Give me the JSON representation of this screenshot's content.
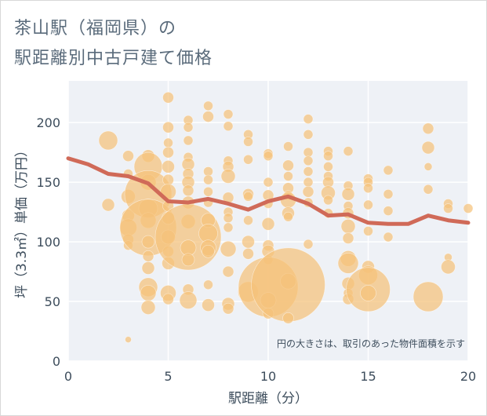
{
  "header": {
    "title_line1": "茶山駅（福岡県）の",
    "title_line2": "駅距離別中古戸建て価格"
  },
  "chart_data": {
    "type": "scatter",
    "xlabel": "駅距離（分）",
    "ylabel": "坪（3.3㎡）単価（万円）",
    "xlim": [
      0,
      20
    ],
    "ylim": [
      0,
      235
    ],
    "xticks": [
      0,
      5,
      10,
      15,
      20
    ],
    "yticks": [
      0,
      50,
      100,
      150,
      200
    ],
    "note": "円の大きさは、取引のあった物件面積を示す",
    "colors": {
      "bubble": "#f5c27a",
      "trend": "#d06a58",
      "plot_bg": "#eef1f6",
      "grid": "#ffffff"
    },
    "bubbles": [
      [
        2,
        185,
        12
      ],
      [
        2,
        131,
        8
      ],
      [
        3,
        172,
        7
      ],
      [
        3,
        157,
        6
      ],
      [
        3,
        138,
        9
      ],
      [
        3,
        122,
        8
      ],
      [
        3,
        112,
        11
      ],
      [
        3,
        102,
        7
      ],
      [
        3,
        97,
        6
      ],
      [
        3,
        18,
        4
      ],
      [
        4,
        172,
        8
      ],
      [
        4,
        163,
        18
      ],
      [
        4,
        150,
        10
      ],
      [
        4,
        140,
        30
      ],
      [
        4,
        128,
        12
      ],
      [
        4,
        118,
        10
      ],
      [
        4,
        112,
        36
      ],
      [
        4,
        100,
        8
      ],
      [
        4,
        88,
        7
      ],
      [
        4,
        78,
        8
      ],
      [
        4,
        62,
        12
      ],
      [
        4,
        57,
        10
      ],
      [
        4,
        45,
        9
      ],
      [
        5,
        221,
        7
      ],
      [
        5,
        196,
        7
      ],
      [
        5,
        183,
        6
      ],
      [
        5,
        175,
        7
      ],
      [
        5,
        163,
        8
      ],
      [
        5,
        152,
        7
      ],
      [
        5,
        142,
        10
      ],
      [
        5,
        130,
        7
      ],
      [
        5,
        120,
        8
      ],
      [
        5,
        104,
        9
      ],
      [
        5,
        92,
        7
      ],
      [
        5,
        82,
        8
      ],
      [
        5,
        57,
        10
      ],
      [
        5,
        52,
        7
      ],
      [
        6,
        202,
        6
      ],
      [
        6,
        196,
        6
      ],
      [
        6,
        185,
        6
      ],
      [
        6,
        171,
        6
      ],
      [
        6,
        165,
        8
      ],
      [
        6,
        157,
        7
      ],
      [
        6,
        150,
        8
      ],
      [
        6,
        143,
        7
      ],
      [
        6,
        133,
        8
      ],
      [
        6,
        117,
        9
      ],
      [
        6,
        104,
        42
      ],
      [
        6,
        95,
        10
      ],
      [
        6,
        85,
        8
      ],
      [
        6,
        60,
        7
      ],
      [
        6,
        51,
        11
      ],
      [
        7,
        214,
        6
      ],
      [
        7,
        205,
        7
      ],
      [
        7,
        159,
        6
      ],
      [
        7,
        152,
        6
      ],
      [
        7,
        142,
        6
      ],
      [
        7,
        133,
        6
      ],
      [
        7,
        118,
        9
      ],
      [
        7,
        107,
        12
      ],
      [
        7,
        95,
        10
      ],
      [
        7,
        92,
        8
      ],
      [
        7,
        64,
        6
      ],
      [
        7,
        47,
        8
      ],
      [
        8,
        207,
        6
      ],
      [
        8,
        197,
        6
      ],
      [
        8,
        168,
        6
      ],
      [
        8,
        163,
        7
      ],
      [
        8,
        155,
        9
      ],
      [
        8,
        137,
        7
      ],
      [
        8,
        125,
        6
      ],
      [
        8,
        120,
        6
      ],
      [
        8,
        112,
        6
      ],
      [
        8,
        94,
        10
      ],
      [
        8,
        75,
        7
      ],
      [
        8,
        48,
        8
      ],
      [
        8,
        44,
        7
      ],
      [
        9,
        190,
        6
      ],
      [
        9,
        184,
        6
      ],
      [
        9,
        169,
        6
      ],
      [
        9,
        140,
        7
      ],
      [
        9,
        138,
        6
      ],
      [
        9,
        118,
        6
      ],
      [
        9,
        100,
        8
      ],
      [
        9,
        90,
        7
      ],
      [
        9,
        58,
        13
      ],
      [
        10,
        174,
        6
      ],
      [
        10,
        172,
        6
      ],
      [
        10,
        150,
        6
      ],
      [
        10,
        139,
        7
      ],
      [
        10,
        132,
        6
      ],
      [
        10,
        115,
        8
      ],
      [
        10,
        97,
        7
      ],
      [
        10,
        92,
        8
      ],
      [
        10,
        85,
        6
      ],
      [
        10,
        62,
        38
      ],
      [
        10,
        51,
        10
      ],
      [
        10,
        40,
        7
      ],
      [
        11,
        180,
        6
      ],
      [
        11,
        164,
        7
      ],
      [
        11,
        155,
        6
      ],
      [
        11,
        145,
        7
      ],
      [
        11,
        139,
        6
      ],
      [
        11,
        135,
        10
      ],
      [
        11,
        124,
        8
      ],
      [
        11,
        121,
        6
      ],
      [
        11,
        67,
        10
      ],
      [
        11,
        64,
        47
      ],
      [
        11,
        36,
        7
      ],
      [
        12,
        203,
        6
      ],
      [
        12,
        190,
        6
      ],
      [
        12,
        175,
        6
      ],
      [
        12,
        168,
        6
      ],
      [
        12,
        159,
        6
      ],
      [
        12,
        150,
        6
      ],
      [
        12,
        142,
        7
      ],
      [
        12,
        133,
        6
      ],
      [
        12,
        98,
        6
      ],
      [
        13,
        176,
        6
      ],
      [
        13,
        172,
        6
      ],
      [
        13,
        163,
        6
      ],
      [
        13,
        155,
        6
      ],
      [
        13,
        150,
        7
      ],
      [
        13,
        141,
        9
      ],
      [
        13,
        135,
        6
      ],
      [
        13,
        124,
        6
      ],
      [
        14,
        176,
        6
      ],
      [
        14,
        147,
        6
      ],
      [
        14,
        140,
        8
      ],
      [
        14,
        130,
        6
      ],
      [
        14,
        124,
        7
      ],
      [
        14,
        113,
        9
      ],
      [
        14,
        103,
        7
      ],
      [
        14,
        86,
        10
      ],
      [
        14,
        82,
        13
      ],
      [
        14,
        65,
        8
      ],
      [
        14,
        57,
        6
      ],
      [
        14,
        52,
        7
      ],
      [
        15,
        153,
        6
      ],
      [
        15,
        150,
        6
      ],
      [
        15,
        145,
        6
      ],
      [
        15,
        131,
        6
      ],
      [
        15,
        109,
        6
      ],
      [
        15,
        79,
        8
      ],
      [
        15,
        72,
        12
      ],
      [
        15,
        60,
        28
      ],
      [
        15,
        57,
        10
      ],
      [
        16,
        160,
        6
      ],
      [
        16,
        140,
        6
      ],
      [
        16,
        126,
        6
      ],
      [
        16,
        104,
        6
      ],
      [
        18,
        195,
        7
      ],
      [
        18,
        179,
        8
      ],
      [
        18,
        163,
        5
      ],
      [
        18,
        144,
        6
      ],
      [
        18,
        54,
        19
      ],
      [
        19,
        132,
        6
      ],
      [
        19,
        128,
        6
      ],
      [
        19,
        87,
        5
      ],
      [
        19,
        79,
        9
      ],
      [
        20,
        128,
        6
      ]
    ],
    "trend": [
      [
        0,
        170
      ],
      [
        1,
        165
      ],
      [
        2,
        157
      ],
      [
        3,
        155
      ],
      [
        4,
        149
      ],
      [
        5,
        134
      ],
      [
        6,
        133
      ],
      [
        7,
        136
      ],
      [
        8,
        132
      ],
      [
        9,
        127
      ],
      [
        10,
        134
      ],
      [
        11,
        138
      ],
      [
        12,
        132
      ],
      [
        13,
        122
      ],
      [
        14,
        123
      ],
      [
        15,
        116
      ],
      [
        16,
        115
      ],
      [
        17,
        115
      ],
      [
        18,
        122
      ],
      [
        19,
        118
      ],
      [
        20,
        116
      ]
    ]
  }
}
